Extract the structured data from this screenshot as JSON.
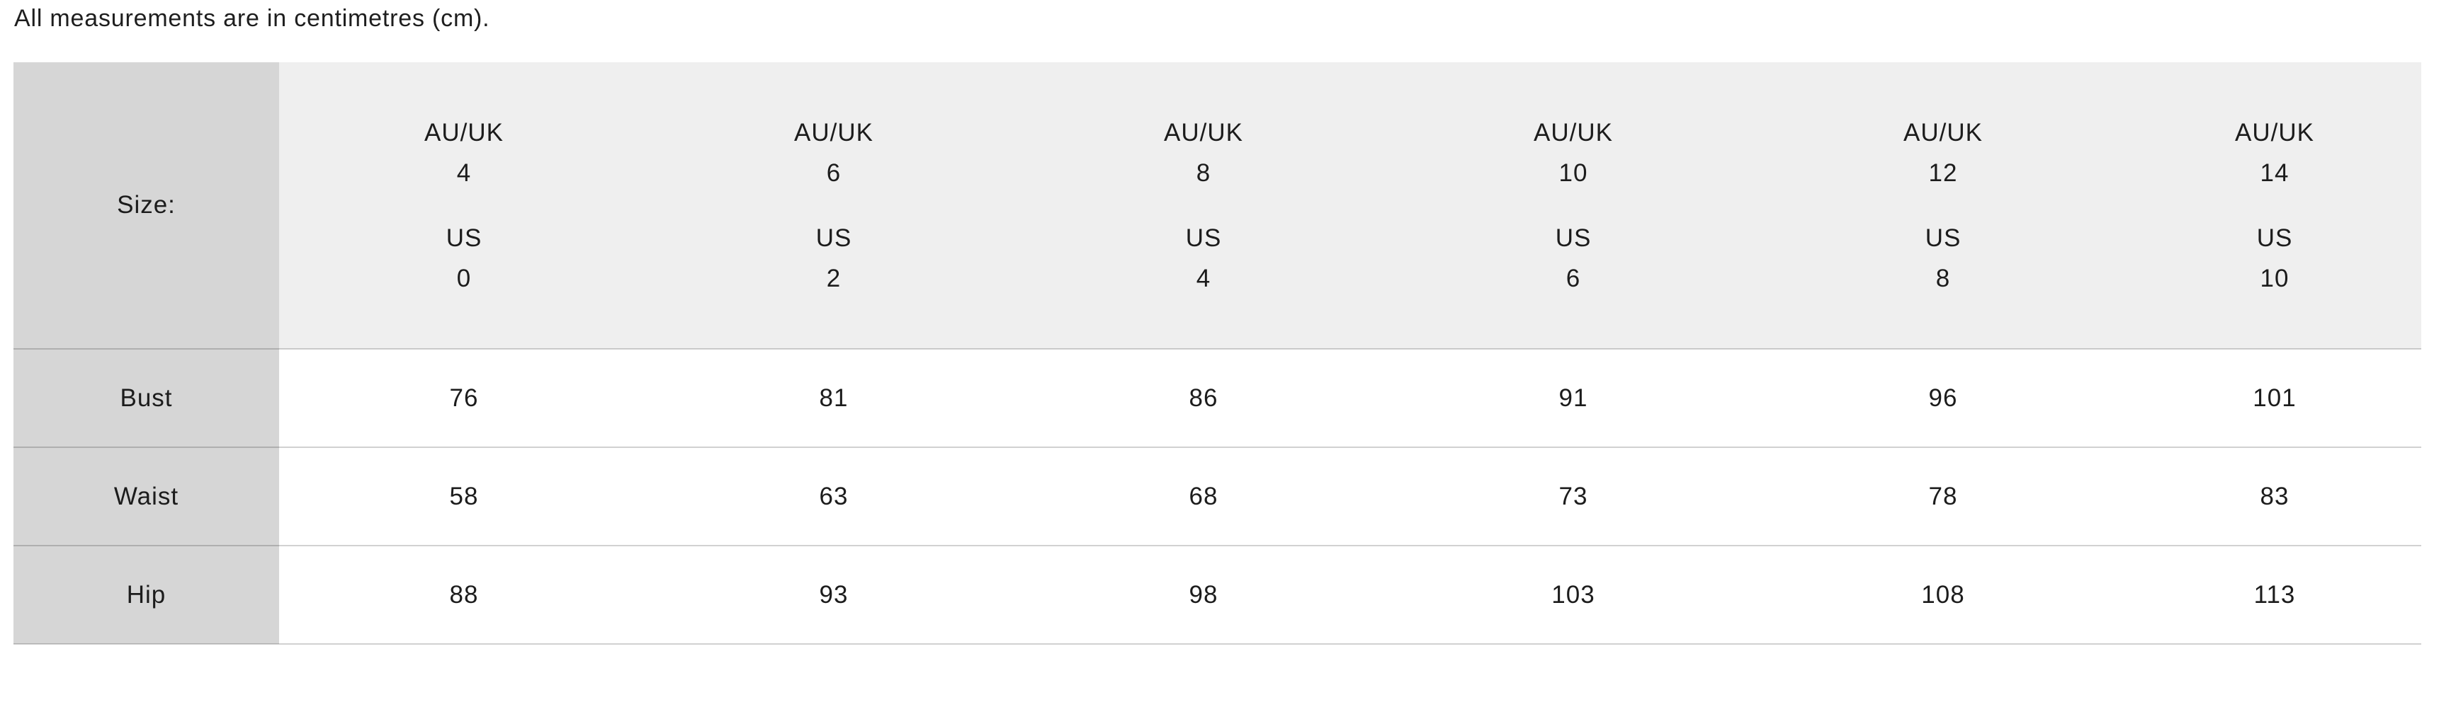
{
  "note": "All measurements are in centimetres (cm).",
  "table": {
    "corner_label": "Size:",
    "au_uk_label": "AU/UK",
    "us_label": "US",
    "columns": [
      {
        "au_uk": "4",
        "us": "0"
      },
      {
        "au_uk": "6",
        "us": "2"
      },
      {
        "au_uk": "8",
        "us": "4"
      },
      {
        "au_uk": "10",
        "us": "6"
      },
      {
        "au_uk": "12",
        "us": "8"
      },
      {
        "au_uk": "14",
        "us": "10"
      }
    ],
    "rows": [
      {
        "label": "Bust",
        "values": [
          "76",
          "81",
          "86",
          "91",
          "96",
          "101"
        ]
      },
      {
        "label": "Waist",
        "values": [
          "58",
          "63",
          "68",
          "73",
          "78",
          "83"
        ]
      },
      {
        "label": "Hip",
        "values": [
          "88",
          "93",
          "98",
          "103",
          "108",
          "113"
        ]
      }
    ],
    "colors": {
      "label_column_bg": "#d6d6d6",
      "header_row_bg": "#efefef",
      "row_divider_on_white": "#d1d1d1",
      "row_divider_on_gray": "#adadad",
      "text": "#1c1c1c"
    }
  }
}
